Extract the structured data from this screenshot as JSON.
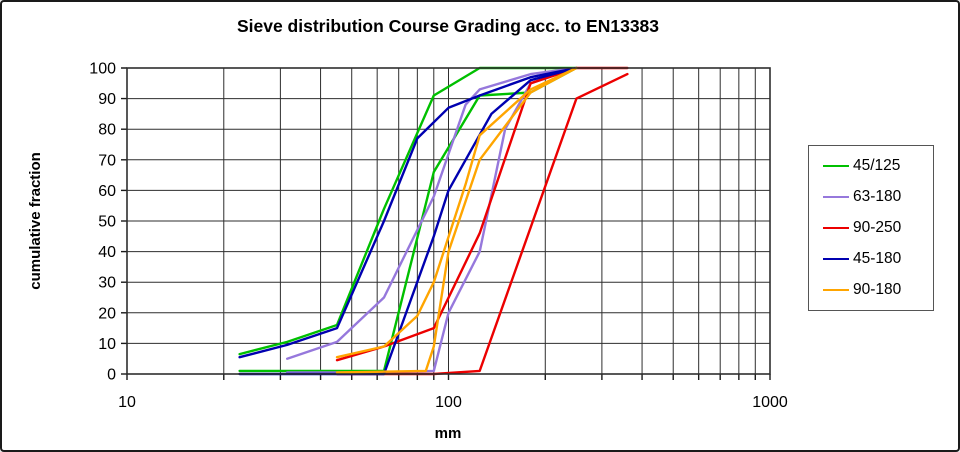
{
  "chart_data": {
    "type": "line",
    "title": "Sieve distribution Course Grading acc. to EN13383",
    "xlabel": "mm",
    "ylabel": "cumulative fraction",
    "x_scale": "log",
    "xlim": [
      10,
      1000
    ],
    "ylim": [
      0,
      100
    ],
    "x_major_ticks": [
      10,
      100,
      1000
    ],
    "x_tick_labels": [
      "10",
      "100",
      "1000"
    ],
    "y_ticks": [
      0,
      10,
      20,
      30,
      40,
      50,
      60,
      70,
      80,
      90,
      100
    ],
    "grid": true,
    "legend_position": "right",
    "series": [
      {
        "name": "45/125",
        "color": "#00C000",
        "lines": [
          [
            [
              22.4,
              6.5
            ],
            [
              31.5,
              10.5
            ],
            [
              45,
              16
            ],
            [
              63,
              54
            ],
            [
              90,
              91
            ],
            [
              125,
              100
            ],
            [
              250,
              100
            ]
          ],
          [
            [
              22.4,
              1
            ],
            [
              45,
              1
            ],
            [
              63,
              1
            ],
            [
              90,
              66
            ],
            [
              125,
              91
            ],
            [
              180,
              92
            ],
            [
              250,
              100
            ]
          ]
        ]
      },
      {
        "name": "63-180",
        "color": "#9678DC",
        "lines": [
          [
            [
              31.5,
              5
            ],
            [
              45,
              10.5
            ],
            [
              63,
              25
            ],
            [
              90,
              58
            ],
            [
              113,
              88
            ],
            [
              125,
              93
            ],
            [
              180,
              98
            ],
            [
              250,
              100
            ]
          ],
          [
            [
              31.5,
              0.5
            ],
            [
              63,
              0.5
            ],
            [
              90,
              1
            ],
            [
              100,
              20
            ],
            [
              125,
              40
            ],
            [
              150,
              80
            ],
            [
              180,
              95
            ],
            [
              250,
              100
            ]
          ]
        ]
      },
      {
        "name": "90-250",
        "color": "#EC0000",
        "lines": [
          [
            [
              45,
              4.5
            ],
            [
              63,
              9
            ],
            [
              90,
              15
            ],
            [
              125,
              46
            ],
            [
              180,
              95
            ],
            [
              250,
              100
            ],
            [
              360,
              100
            ]
          ],
          [
            [
              45,
              0
            ],
            [
              90,
              0
            ],
            [
              125,
              1
            ],
            [
              250,
              90
            ],
            [
              360,
              98
            ]
          ]
        ]
      },
      {
        "name": "45-180",
        "color": "#0000B0",
        "lines": [
          [
            [
              22.4,
              5.5
            ],
            [
              31.5,
              9.5
            ],
            [
              45,
              15
            ],
            [
              63,
              50
            ],
            [
              80,
              77
            ],
            [
              100,
              87
            ],
            [
              125,
              91
            ],
            [
              180,
              97
            ],
            [
              250,
              100
            ]
          ],
          [
            [
              22.4,
              0
            ],
            [
              63,
              0
            ],
            [
              90,
              45
            ],
            [
              100,
              60
            ],
            [
              136,
              85
            ],
            [
              180,
              96
            ],
            [
              250,
              100
            ]
          ]
        ]
      },
      {
        "name": "90-180",
        "color": "#FFA500",
        "lines": [
          [
            [
              45,
              5.5
            ],
            [
              63,
              9
            ],
            [
              80,
              19
            ],
            [
              90,
              30
            ],
            [
              113,
              62
            ],
            [
              125,
              78
            ],
            [
              180,
              93
            ],
            [
              250,
              100
            ]
          ],
          [
            [
              45,
              0.5
            ],
            [
              85,
              1
            ],
            [
              90,
              9
            ],
            [
              100,
              40
            ],
            [
              125,
              70
            ],
            [
              180,
              92
            ],
            [
              250,
              100
            ]
          ]
        ]
      }
    ]
  }
}
